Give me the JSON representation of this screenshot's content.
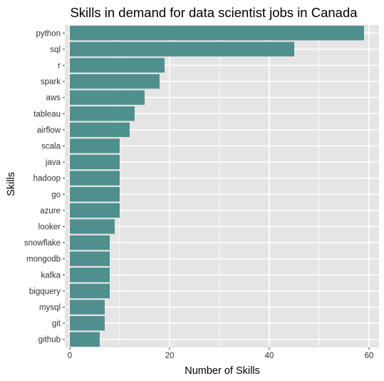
{
  "chart_data": {
    "type": "bar",
    "orientation": "horizontal",
    "title": "Skills in demand for data scientist jobs in Canada",
    "xlabel": "Number of Skills",
    "ylabel": "Skills",
    "categories": [
      "python",
      "sql",
      "r",
      "spark",
      "aws",
      "tableau",
      "airflow",
      "scala",
      "java",
      "hadoop",
      "go",
      "azure",
      "looker",
      "snowflake",
      "mongodb",
      "kafka",
      "bigquery",
      "mysql",
      "git",
      "github"
    ],
    "values": [
      59,
      45,
      19,
      18,
      15,
      13,
      12,
      10,
      10,
      10,
      10,
      10,
      9,
      8,
      8,
      8,
      8,
      7,
      7,
      6
    ],
    "xlim": [
      -1,
      62
    ],
    "xticks": [
      0,
      20,
      40,
      60
    ],
    "grid": true,
    "colors": {
      "bar": "#4f8f8e",
      "panel": "#e5e5e5",
      "grid": "#ffffff"
    }
  }
}
